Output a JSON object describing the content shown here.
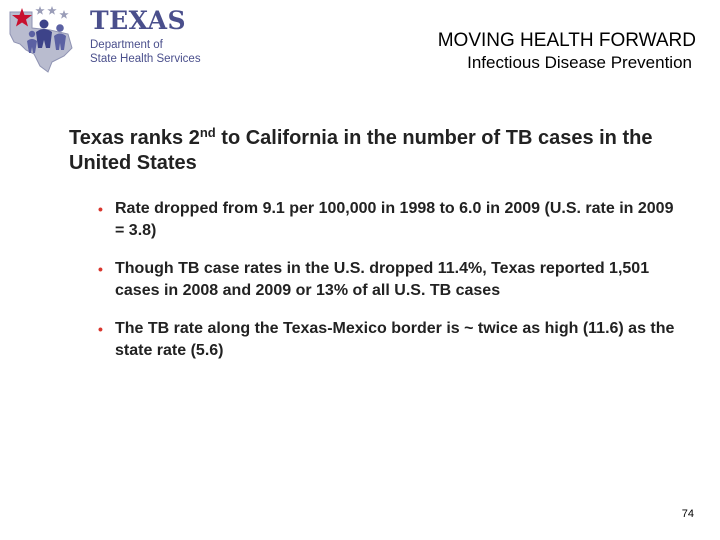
{
  "logo": {
    "wordmark": "TEXAS",
    "department": "Department of\nState Health Services"
  },
  "header": {
    "title": "MOVING HEALTH FORWARD",
    "subtitle": "Infectious Disease Prevention"
  },
  "main": {
    "heading_pre": "Texas ranks 2",
    "heading_sup": "nd",
    "heading_post": " to California in the number of TB cases in the United States",
    "bullet_glyph": "•",
    "bullets": [
      {
        "text": "Rate dropped from 9.1 per 100,000 in 1998 to 6.0 in 2009 (U.S. rate in 2009 = 3.8)"
      },
      {
        "text": "Though TB case rates in the U.S. dropped 11.4%, Texas reported 1,501 cases in 2008 and 2009 or 13% of all U.S. TB cases"
      },
      {
        "text": "The TB rate along the Texas-Mexico border is ~ twice as high (11.6) as the state rate (5.6)"
      }
    ]
  },
  "footer": {
    "page_number": "74"
  },
  "colors": {
    "brand_blue": "#4a4f8c",
    "star_red": "#c8102e",
    "bullet_red": "#d9362e"
  }
}
